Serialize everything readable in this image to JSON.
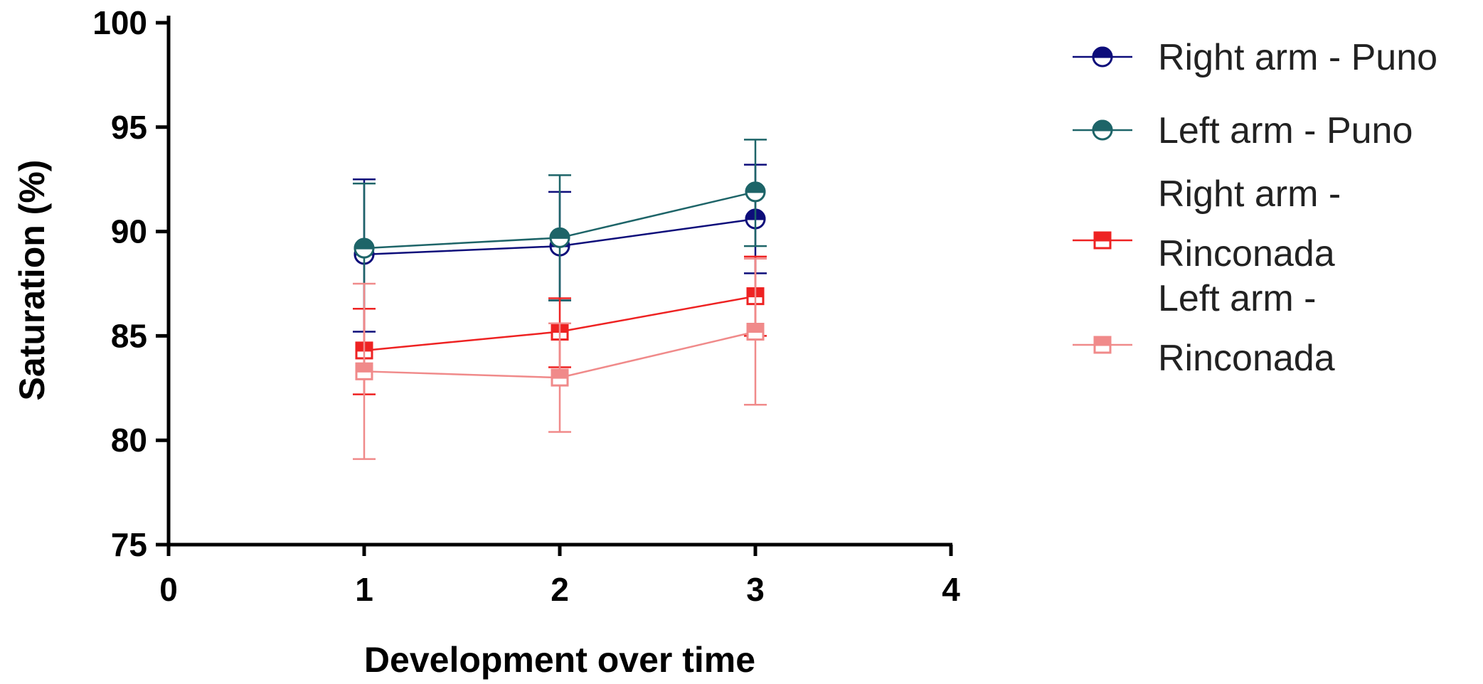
{
  "chart_data": {
    "type": "line",
    "title": "",
    "xlabel": "Development over time",
    "ylabel": "Saturation (%)",
    "xlim": [
      0,
      4
    ],
    "ylim": [
      75,
      100
    ],
    "xticks": [
      "0",
      "1",
      "2",
      "3",
      "4"
    ],
    "yticks": [
      "75",
      "80",
      "85",
      "90",
      "95",
      "100"
    ],
    "x": [
      1,
      2,
      3
    ],
    "grid": false,
    "legend_position": "right",
    "series": [
      {
        "name": "Right arm - Puno",
        "legend_lines": [
          "Right arm - Puno"
        ],
        "color": "#0d0d7a",
        "marker": "circle-half",
        "values": [
          88.9,
          89.3,
          90.6
        ],
        "err_low": [
          85.2,
          86.7,
          88.0
        ],
        "err_high": [
          92.5,
          91.9,
          93.2
        ]
      },
      {
        "name": "Left arm - Puno",
        "legend_lines": [
          "Left arm - Puno"
        ],
        "color": "#1d6468",
        "marker": "circle-half",
        "values": [
          89.2,
          89.7,
          91.9
        ],
        "err_low": [
          86.3,
          86.7,
          89.3
        ],
        "err_high": [
          92.3,
          92.7,
          94.4
        ]
      },
      {
        "name": "Right arm - Rinconada",
        "legend_lines": [
          "Right arm -",
          "Rinconada"
        ],
        "color": "#ee2222",
        "marker": "square-half",
        "values": [
          84.3,
          85.2,
          86.9
        ],
        "err_low": [
          82.2,
          83.5,
          85.0
        ],
        "err_high": [
          86.3,
          86.8,
          88.8
        ]
      },
      {
        "name": "Left arm - Rinconada",
        "legend_lines": [
          "Left arm -",
          "Rinconada"
        ],
        "color": "#f08a8a",
        "marker": "square-half",
        "values": [
          83.3,
          83.0,
          85.2
        ],
        "err_low": [
          79.1,
          80.4,
          81.7
        ],
        "err_high": [
          87.5,
          85.6,
          88.7
        ]
      }
    ]
  }
}
